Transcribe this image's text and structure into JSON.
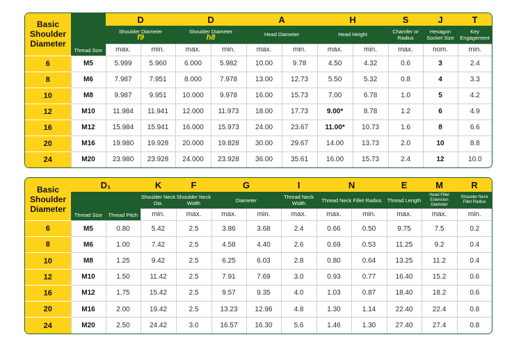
{
  "table1": {
    "basic_label": "Basic Shoulder Diameter",
    "thread_size_label": "Thread Size",
    "letters": [
      "D",
      "D",
      "A",
      "H",
      "S",
      "J",
      "T"
    ],
    "groups": [
      {
        "title": "Shoulder Diameter",
        "grade": "f9"
      },
      {
        "title": "Shoulder Diameter",
        "grade": "h8"
      },
      {
        "title": "Head Diameter",
        "grade": ""
      },
      {
        "title": "Head Height",
        "grade": ""
      },
      {
        "title": "Chamfer or Radius",
        "grade": ""
      },
      {
        "title": "Hexagon Socket Size",
        "grade": ""
      },
      {
        "title": "Key Engagement",
        "grade": ""
      }
    ],
    "subheaders": [
      "max.",
      "min.",
      "max.",
      "min.",
      "max.",
      "min.",
      "max.",
      "min.",
      "max.",
      "nom.",
      "min."
    ],
    "rows": [
      {
        "basic": "6",
        "thread": "M5",
        "vals": [
          "5.999",
          "5.960",
          "6.000",
          "5.982",
          "10.00",
          "9.78",
          "4.50",
          "4.32",
          "0.6",
          "3",
          "2.4"
        ]
      },
      {
        "basic": "8",
        "thread": "M6",
        "vals": [
          "7.987",
          "7.951",
          "8.000",
          "7.978",
          "13.00",
          "12.73",
          "5.50",
          "5.32",
          "0.8",
          "4",
          "3.3"
        ]
      },
      {
        "basic": "10",
        "thread": "M8",
        "vals": [
          "9.987",
          "9.951",
          "10.000",
          "9.978",
          "16.00",
          "15.73",
          "7.00",
          "6.78",
          "1.0",
          "5",
          "4.2"
        ]
      },
      {
        "basic": "12",
        "thread": "M10",
        "vals": [
          "11.984",
          "11.941",
          "12.000",
          "11.973",
          "18.00",
          "17.73",
          "9.00*",
          "8.78",
          "1.2",
          "6",
          "4.9"
        ]
      },
      {
        "basic": "16",
        "thread": "M12",
        "vals": [
          "15.984",
          "15.941",
          "16.000",
          "15.973",
          "24.00",
          "23.67",
          "11.00*",
          "10.73",
          "1.6",
          "8",
          "6.6"
        ]
      },
      {
        "basic": "20",
        "thread": "M16",
        "vals": [
          "19.980",
          "19.928",
          "20.000",
          "19.828",
          "30.00",
          "29.67",
          "14.00",
          "13.73",
          "2.0",
          "10",
          "8.8"
        ]
      },
      {
        "basic": "24",
        "thread": "M20",
        "vals": [
          "23.980",
          "23.928",
          "24.000",
          "23.928",
          "36.00",
          "35.61",
          "16.00",
          "15.73",
          "2.4",
          "12",
          "10.0"
        ]
      }
    ]
  },
  "table2": {
    "basic_label": "Basic Shoulder Diameter",
    "thread_size_label": "Thread Size",
    "letters": [
      "D₁",
      "K",
      "F",
      "G",
      "I",
      "N",
      "E",
      "M",
      "R"
    ],
    "groups": [
      {
        "title": "Thread Pitch"
      },
      {
        "title": "Shoulder Neck Dia."
      },
      {
        "title": "Shoulder Neck Width"
      },
      {
        "title": "Diameter"
      },
      {
        "title": "Thread Neck Width"
      },
      {
        "title": "Thread Neck Fillet Radius"
      },
      {
        "title": "Thread Length"
      },
      {
        "title": "Head Fillet Extension Diameter"
      },
      {
        "title": "Shoulder Neck Fillet Radius"
      }
    ],
    "subheaders": [
      "min.",
      "max.",
      "max.",
      "min.",
      "max.",
      "max.",
      "min.",
      "max.",
      "max.",
      "min."
    ],
    "rows": [
      {
        "basic": "6",
        "thread": "M5",
        "vals": [
          "0.80",
          "5.42",
          "2.5",
          "3.86",
          "3.68",
          "2.4",
          "0.66",
          "0.50",
          "9.75",
          "7.5",
          "0.2"
        ]
      },
      {
        "basic": "8",
        "thread": "M6",
        "vals": [
          "1.00",
          "7.42",
          "2.5",
          "4.58",
          "4.40",
          "2.6",
          "0.69",
          "0.53",
          "11.25",
          "9.2",
          "0.4"
        ]
      },
      {
        "basic": "10",
        "thread": "M8",
        "vals": [
          "1.25",
          "9.42",
          "2.5",
          "6.25",
          "6.03",
          "2.8",
          "0.80",
          "0.64",
          "13.25",
          "11.2",
          "0.4"
        ]
      },
      {
        "basic": "12",
        "thread": "M10",
        "vals": [
          "1.50",
          "11.42",
          "2.5",
          "7.91",
          "7.69",
          "3.0",
          "0.93",
          "0.77",
          "16.40",
          "15.2",
          "0.6"
        ]
      },
      {
        "basic": "16",
        "thread": "M12",
        "vals": [
          "1.75",
          "15.42",
          "2.5",
          "9.57",
          "9.35",
          "4.0",
          "1.03",
          "0.87",
          "18.40",
          "18.2",
          "0.6"
        ]
      },
      {
        "basic": "20",
        "thread": "M16",
        "vals": [
          "2.00",
          "19.42",
          "2.5",
          "13.23",
          "12.96",
          "4.8",
          "1.30",
          "1.14",
          "22.40",
          "22.4",
          "0.8"
        ]
      },
      {
        "basic": "24",
        "thread": "M20",
        "vals": [
          "2.50",
          "24.42",
          "3.0",
          "16.57",
          "16.30",
          "5.6",
          "1.46",
          "1.30",
          "27.40",
          "27.4",
          "0.8"
        ]
      }
    ]
  },
  "colors": {
    "dark_green": "#1d5e2c",
    "yellow": "#ffd21a"
  }
}
